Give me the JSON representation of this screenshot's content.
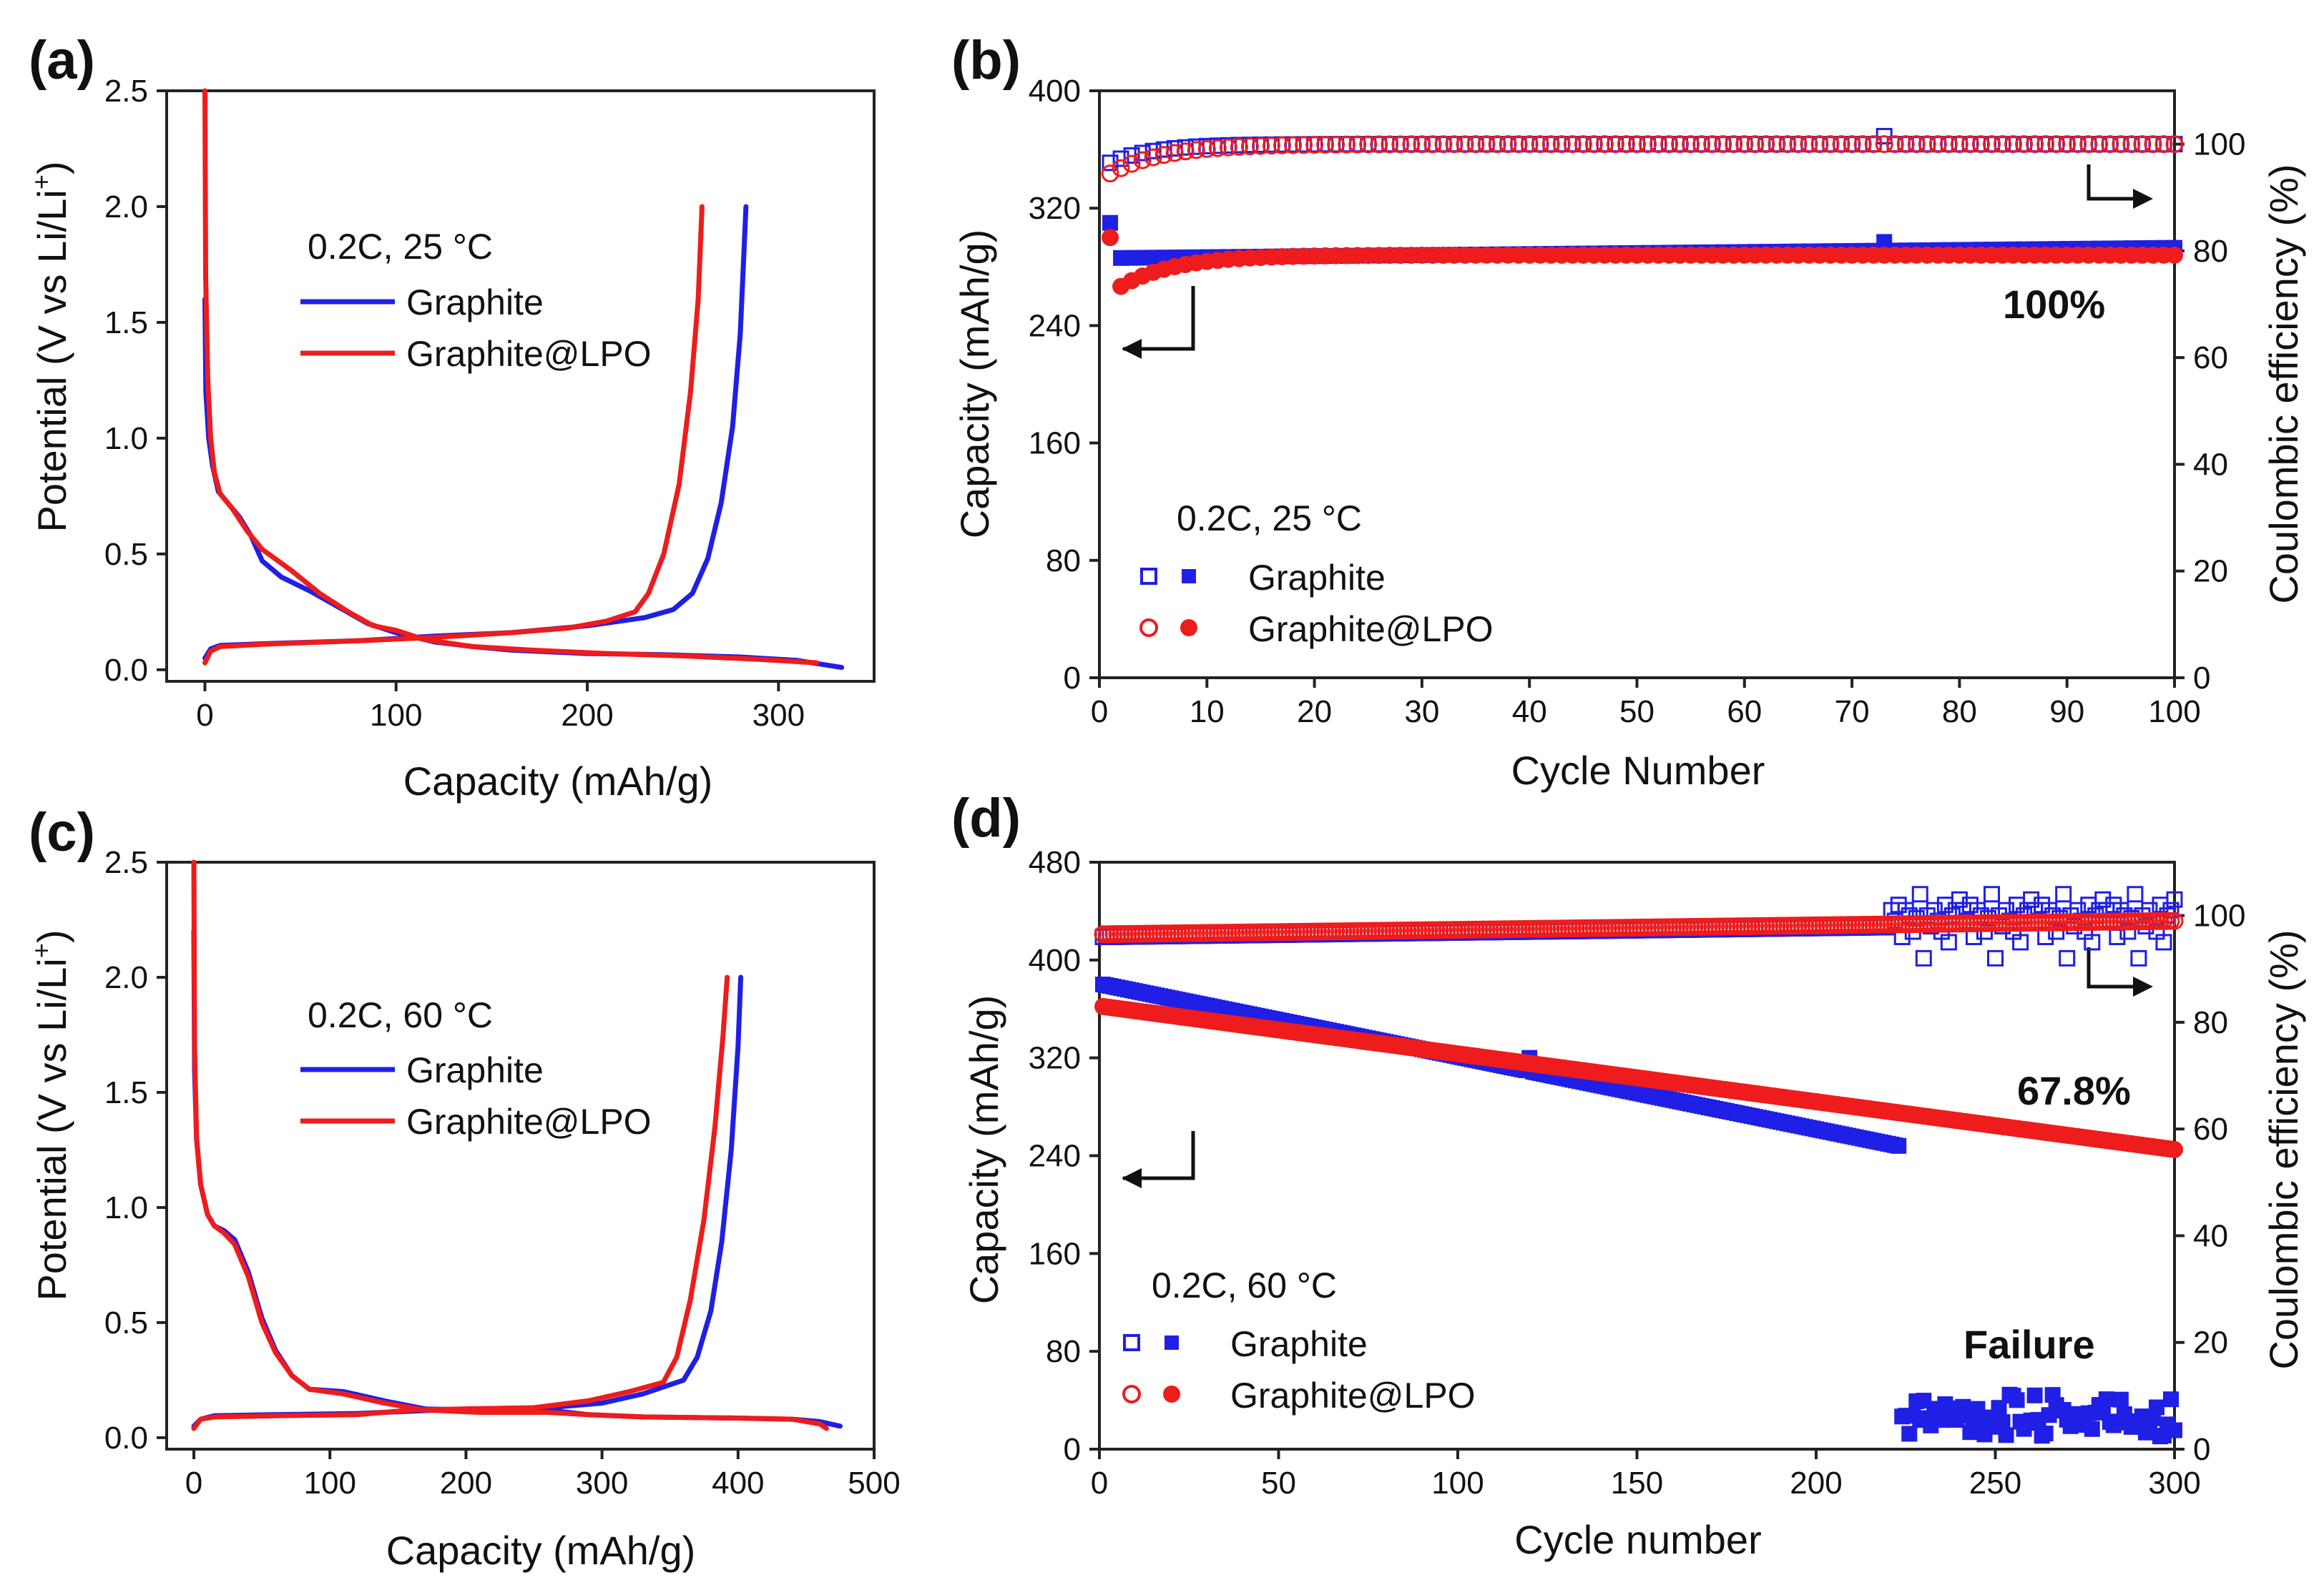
{
  "chart_data": [
    {
      "panel": "(a)",
      "type": "line",
      "xlabel": "Capacity (mAh/g)",
      "ylabel": "Potential (V vs Li/Li+)",
      "ylabel_main": "Potential (V vs Li/Li",
      "ylabel_sup": "+",
      "ylabel_close": ")",
      "xlim": [
        -20,
        350
      ],
      "ylim": [
        -0.05,
        2.5
      ],
      "xticks": [
        0,
        100,
        200,
        300
      ],
      "yticks": [
        0.0,
        0.5,
        1.0,
        1.5,
        2.0,
        2.5
      ],
      "xtick_labels": [
        "0",
        "100",
        "200",
        "300"
      ],
      "ytick_labels": [
        "0.0",
        "0.5",
        "1.0",
        "1.5",
        "2.0",
        "2.5"
      ],
      "legend": {
        "title": "0.2C, 25 °C",
        "entries": [
          {
            "label": "Graphite",
            "color": "#1f1fe6"
          },
          {
            "label": "Graphite@LPO",
            "color": "#ee1c1c"
          }
        ]
      },
      "series": [
        {
          "name": "Graphite",
          "color": "#1f1fe6",
          "discharge": [
            [
              0,
              1.6
            ],
            [
              0.5,
              1.2
            ],
            [
              2,
              1.0
            ],
            [
              4,
              0.88
            ],
            [
              7,
              0.77
            ],
            [
              12,
              0.72
            ],
            [
              18,
              0.66
            ],
            [
              24,
              0.58
            ],
            [
              30,
              0.47
            ],
            [
              40,
              0.4
            ],
            [
              55,
              0.34
            ],
            [
              70,
              0.27
            ],
            [
              85,
              0.2
            ],
            [
              100,
              0.16
            ],
            [
              120,
              0.12
            ],
            [
              140,
              0.1
            ],
            [
              160,
              0.085
            ],
            [
              200,
              0.07
            ],
            [
              240,
              0.065
            ],
            [
              280,
              0.055
            ],
            [
              310,
              0.04
            ],
            [
              333,
              0.01
            ]
          ],
          "charge": [
            [
              0,
              0.05
            ],
            [
              3,
              0.09
            ],
            [
              8,
              0.105
            ],
            [
              30,
              0.112
            ],
            [
              80,
              0.125
            ],
            [
              120,
              0.145
            ],
            [
              160,
              0.16
            ],
            [
              200,
              0.19
            ],
            [
              230,
              0.225
            ],
            [
              245,
              0.26
            ],
            [
              255,
              0.33
            ],
            [
              263,
              0.48
            ],
            [
              270,
              0.72
            ],
            [
              276,
              1.05
            ],
            [
              280,
              1.45
            ],
            [
              283,
              2.0
            ]
          ]
        },
        {
          "name": "Graphite@LPO",
          "color": "#ee1c1c",
          "discharge": [
            [
              0,
              2.5
            ],
            [
              0.4,
              1.7
            ],
            [
              1.5,
              1.25
            ],
            [
              3,
              1.0
            ],
            [
              5,
              0.85
            ],
            [
              8,
              0.76
            ],
            [
              14,
              0.7
            ],
            [
              22,
              0.6
            ],
            [
              30,
              0.52
            ],
            [
              45,
              0.43
            ],
            [
              60,
              0.33
            ],
            [
              75,
              0.25
            ],
            [
              88,
              0.19
            ],
            [
              100,
              0.17
            ],
            [
              115,
              0.13
            ],
            [
              140,
              0.1
            ],
            [
              170,
              0.085
            ],
            [
              210,
              0.07
            ],
            [
              250,
              0.06
            ],
            [
              290,
              0.045
            ],
            [
              320,
              0.03
            ]
          ],
          "charge": [
            [
              0,
              0.03
            ],
            [
              3,
              0.08
            ],
            [
              8,
              0.1
            ],
            [
              30,
              0.11
            ],
            [
              80,
              0.125
            ],
            [
              120,
              0.14
            ],
            [
              160,
              0.16
            ],
            [
              190,
              0.18
            ],
            [
              210,
              0.21
            ],
            [
              225,
              0.25
            ],
            [
              232,
              0.33
            ],
            [
              240,
              0.5
            ],
            [
              248,
              0.8
            ],
            [
              254,
              1.2
            ],
            [
              258,
              1.6
            ],
            [
              260,
              2.0
            ]
          ]
        }
      ]
    },
    {
      "panel": "(b)",
      "type": "scatter",
      "xlabel": "Cycle Number",
      "ylabel": "Capacity (mAh/g)",
      "y2label": "Coulombic efficiency (%)",
      "xlim": [
        0,
        100
      ],
      "ylim": [
        0,
        400
      ],
      "y2lim": [
        0,
        110
      ],
      "xticks": [
        0,
        10,
        20,
        30,
        40,
        50,
        60,
        70,
        80,
        90,
        100
      ],
      "yticks": [
        0,
        80,
        160,
        240,
        320,
        400
      ],
      "y2ticks": [
        0,
        20,
        40,
        60,
        80,
        100
      ],
      "xtick_labels": [
        "0",
        "10",
        "20",
        "30",
        "40",
        "50",
        "60",
        "70",
        "80",
        "90",
        "100"
      ],
      "ytick_labels": [
        "0",
        "80",
        "160",
        "240",
        "320",
        "400"
      ],
      "y2tick_labels": [
        "0",
        "20",
        "40",
        "60",
        "80",
        "100"
      ],
      "legend": {
        "title": "0.2C, 25 °C",
        "entries": [
          {
            "label": "Graphite",
            "color": "#1f1fe6",
            "open_marker": "square",
            "filled_marker": "square"
          },
          {
            "label": "Graphite@LPO",
            "color": "#ee1c1c",
            "open_marker": "circle",
            "filled_marker": "circle"
          }
        ]
      },
      "retention_label": "100%",
      "retention_color": "#111111",
      "series": [
        {
          "name": "Graphite capacity",
          "axis": "left",
          "marker": "square",
          "filled": true,
          "color": "#1f1fe6",
          "n_cycles": 100,
          "first": 310,
          "start": 286,
          "end": 293,
          "spike": {
            "cycle": 73,
            "value": 297
          }
        },
        {
          "name": "Graphite@LPO capacity",
          "axis": "left",
          "marker": "circle",
          "filled": true,
          "color": "#ee1c1c",
          "n_cycles": 100,
          "first": 300,
          "start": 262,
          "end": 288,
          "tau": 5
        },
        {
          "name": "Graphite CE",
          "axis": "right",
          "marker": "square",
          "filled": false,
          "color": "#1f1fe6",
          "n_cycles": 100,
          "start": 96.5,
          "end": 100,
          "tau": 4,
          "spike": {
            "cycle": 73,
            "value": 101.5
          }
        },
        {
          "name": "Graphite@LPO CE",
          "axis": "right",
          "marker": "circle",
          "filled": false,
          "color": "#ee1c1c",
          "n_cycles": 100,
          "start": 94.5,
          "end": 100,
          "tau": 5
        }
      ]
    },
    {
      "panel": "(c)",
      "type": "line",
      "xlabel": "Capacity (mAh/g)",
      "ylabel": "Potential (V vs Li/Li+)",
      "ylabel_main": "Potential (V vs Li/Li",
      "ylabel_sup": "+",
      "ylabel_close": ")",
      "xlim": [
        -20,
        500
      ],
      "ylim": [
        -0.05,
        2.5
      ],
      "xticks": [
        0,
        100,
        200,
        300,
        400,
        500
      ],
      "yticks": [
        0.0,
        0.5,
        1.0,
        1.5,
        2.0,
        2.5
      ],
      "xtick_labels": [
        "0",
        "100",
        "200",
        "300",
        "400",
        "500"
      ],
      "ytick_labels": [
        "0.0",
        "0.5",
        "1.0",
        "1.5",
        "2.0",
        "2.5"
      ],
      "legend": {
        "title": "0.2C, 60 °C",
        "entries": [
          {
            "label": "Graphite",
            "color": "#1f1fe6"
          },
          {
            "label": "Graphite@LPO",
            "color": "#ee1c1c"
          }
        ]
      },
      "series": [
        {
          "name": "Graphite",
          "color": "#1f1fe6",
          "discharge": [
            [
              0,
              2.2
            ],
            [
              0.5,
              1.6
            ],
            [
              2,
              1.3
            ],
            [
              5,
              1.1
            ],
            [
              10,
              0.97
            ],
            [
              15,
              0.92
            ],
            [
              22,
              0.9
            ],
            [
              30,
              0.86
            ],
            [
              40,
              0.72
            ],
            [
              50,
              0.52
            ],
            [
              60,
              0.38
            ],
            [
              72,
              0.27
            ],
            [
              85,
              0.21
            ],
            [
              110,
              0.2
            ],
            [
              140,
              0.16
            ],
            [
              170,
              0.125
            ],
            [
              210,
              0.12
            ],
            [
              260,
              0.12
            ],
            [
              290,
              0.1
            ],
            [
              330,
              0.09
            ],
            [
              400,
              0.085
            ],
            [
              440,
              0.08
            ],
            [
              460,
              0.07
            ],
            [
              475,
              0.05
            ]
          ],
          "charge": [
            [
              0,
              0.05
            ],
            [
              5,
              0.08
            ],
            [
              15,
              0.095
            ],
            [
              60,
              0.1
            ],
            [
              120,
              0.105
            ],
            [
              160,
              0.115
            ],
            [
              200,
              0.125
            ],
            [
              260,
              0.13
            ],
            [
              300,
              0.15
            ],
            [
              330,
              0.19
            ],
            [
              360,
              0.25
            ],
            [
              370,
              0.35
            ],
            [
              380,
              0.55
            ],
            [
              388,
              0.85
            ],
            [
              395,
              1.25
            ],
            [
              400,
              1.7
            ],
            [
              402,
              2.0
            ]
          ]
        },
        {
          "name": "Graphite@LPO",
          "color": "#ee1c1c",
          "discharge": [
            [
              0,
              2.5
            ],
            [
              0.5,
              1.7
            ],
            [
              2,
              1.3
            ],
            [
              5,
              1.1
            ],
            [
              10,
              0.97
            ],
            [
              15,
              0.92
            ],
            [
              22,
              0.89
            ],
            [
              30,
              0.84
            ],
            [
              40,
              0.7
            ],
            [
              50,
              0.5
            ],
            [
              60,
              0.37
            ],
            [
              72,
              0.27
            ],
            [
              85,
              0.21
            ],
            [
              110,
              0.19
            ],
            [
              140,
              0.15
            ],
            [
              170,
              0.12
            ],
            [
              210,
              0.11
            ],
            [
              260,
              0.11
            ],
            [
              290,
              0.1
            ],
            [
              330,
              0.09
            ],
            [
              400,
              0.085
            ],
            [
              440,
              0.08
            ],
            [
              460,
              0.06
            ],
            [
              465,
              0.04
            ]
          ],
          "charge": [
            [
              0,
              0.04
            ],
            [
              5,
              0.08
            ],
            [
              15,
              0.09
            ],
            [
              60,
              0.095
            ],
            [
              120,
              0.1
            ],
            [
              160,
              0.12
            ],
            [
              200,
              0.125
            ],
            [
              250,
              0.13
            ],
            [
              290,
              0.16
            ],
            [
              320,
              0.2
            ],
            [
              345,
              0.24
            ],
            [
              355,
              0.35
            ],
            [
              365,
              0.6
            ],
            [
              375,
              0.95
            ],
            [
              383,
              1.35
            ],
            [
              389,
              1.75
            ],
            [
              392,
              2.0
            ]
          ]
        }
      ]
    },
    {
      "panel": "(d)",
      "type": "scatter",
      "xlabel": "Cycle number",
      "ylabel": "Capacity (mAh/g)",
      "y2label": "Coulombic efficiency (%)",
      "xlim": [
        0,
        300
      ],
      "ylim": [
        0,
        480
      ],
      "y2lim": [
        0,
        110
      ],
      "xticks": [
        0,
        50,
        100,
        150,
        200,
        250,
        300
      ],
      "yticks": [
        0,
        80,
        160,
        240,
        320,
        400,
        480
      ],
      "y2ticks": [
        0,
        20,
        40,
        60,
        80,
        100
      ],
      "xtick_labels": [
        "0",
        "50",
        "100",
        "150",
        "200",
        "250",
        "300"
      ],
      "ytick_labels": [
        "0",
        "80",
        "160",
        "240",
        "320",
        "400",
        "480"
      ],
      "y2tick_labels": [
        "0",
        "20",
        "40",
        "60",
        "80",
        "100"
      ],
      "legend": {
        "title": "0.2C, 60 °C",
        "entries": [
          {
            "label": "Graphite",
            "color": "#1f1fe6",
            "open_marker": "square",
            "filled_marker": "square"
          },
          {
            "label": "Graphite@LPO",
            "color": "#ee1c1c",
            "open_marker": "circle",
            "filled_marker": "circle"
          }
        ]
      },
      "retention_label": "67.8%",
      "retention_color": "#ee1c1c",
      "failure_label": "Failure",
      "failure_color": "#1f1fe6",
      "series": [
        {
          "name": "Graphite capacity",
          "axis": "left",
          "marker": "square",
          "filled": true,
          "color": "#1f1fe6",
          "n_cycles": 223,
          "start": 380,
          "end": 248,
          "spike": {
            "cycle": 120,
            "value": 320
          },
          "after_failure": {
            "from": 224,
            "to": 300,
            "min": 10,
            "max": 45
          }
        },
        {
          "name": "Graphite@LPO capacity",
          "axis": "left",
          "marker": "circle",
          "filled": true,
          "color": "#ee1c1c",
          "n_cycles": 300,
          "start": 362,
          "end": 245
        },
        {
          "name": "Graphite CE",
          "axis": "right",
          "marker": "square",
          "filled": false,
          "color": "#1f1fe6",
          "n_cycles": 300,
          "start": 96,
          "end": 98.5,
          "scatter_from": 220,
          "scatter_values": [
            103,
            101,
            99,
            102,
            96,
            101,
            100,
            97,
            99.5,
            104,
            92,
            100,
            98,
            101,
            99,
            97,
            102,
            95,
            100,
            101
          ]
        },
        {
          "name": "Graphite@LPO CE",
          "axis": "right",
          "marker": "circle",
          "filled": false,
          "color": "#ee1c1c",
          "n_cycles": 300,
          "start": 96.5,
          "end": 99
        }
      ]
    }
  ]
}
